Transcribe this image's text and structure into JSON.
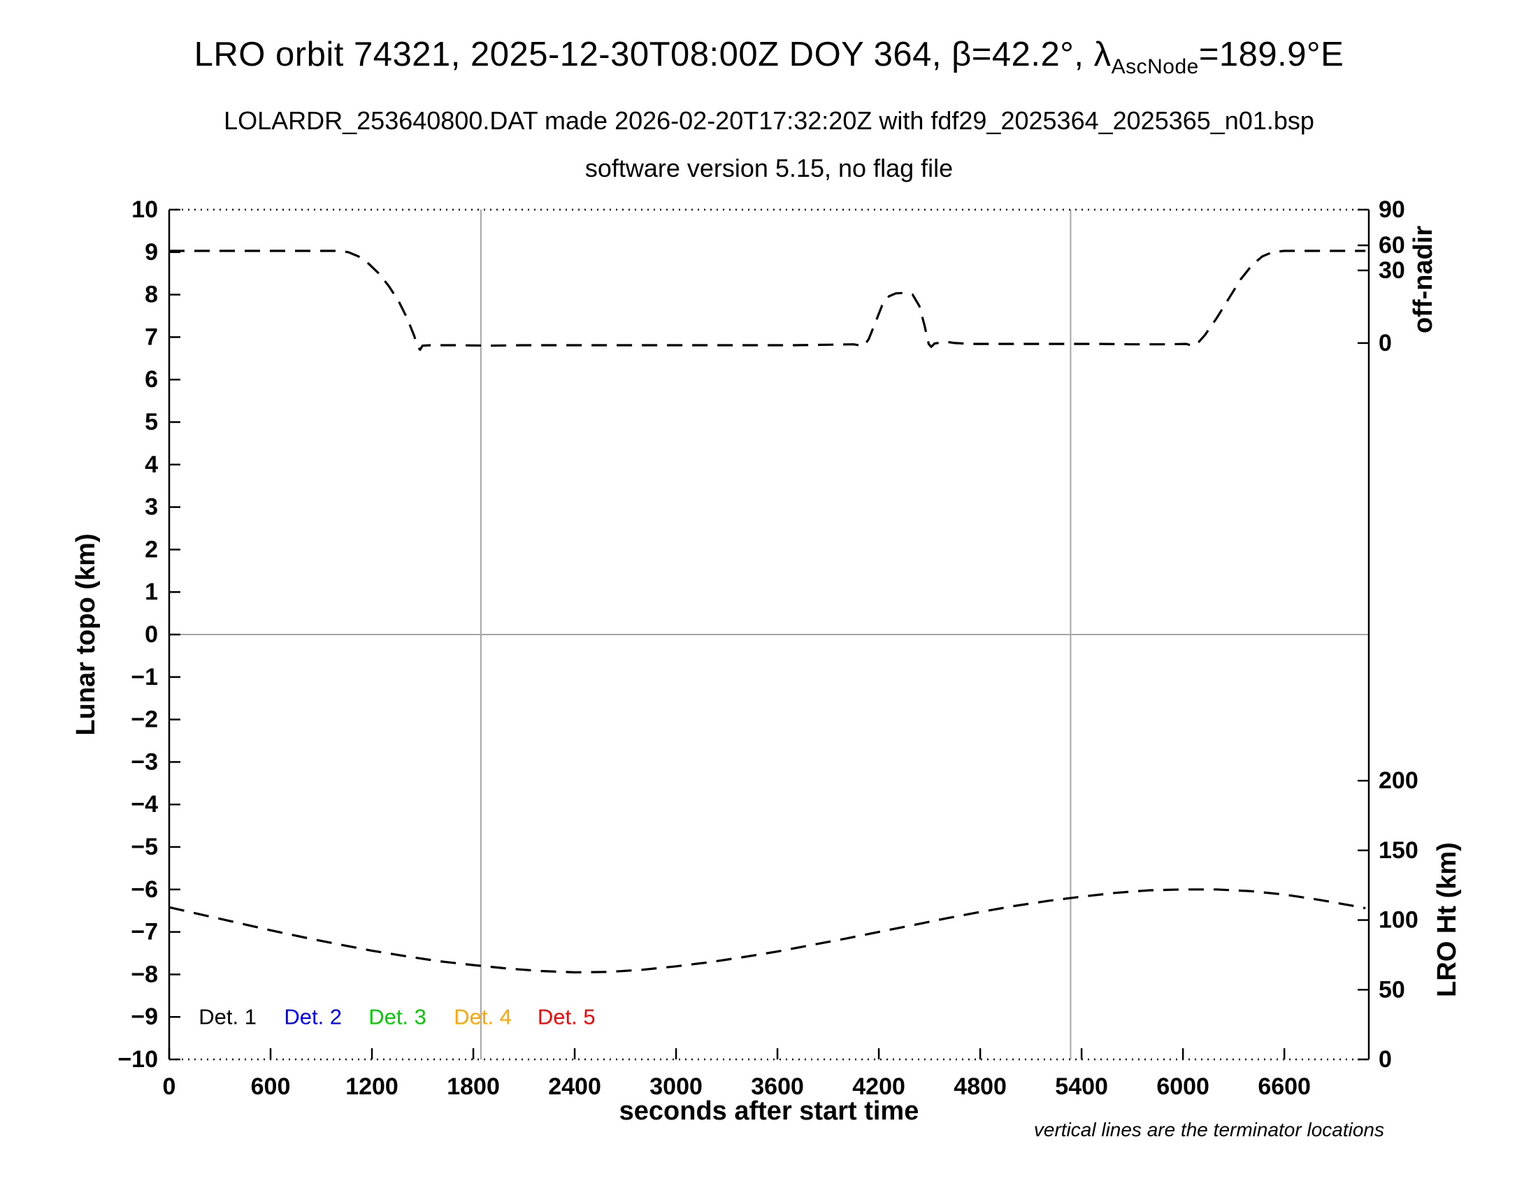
{
  "page": {
    "title_pre": "LRO orbit 74321, 2025-12-30T08:00Z DOY 364, β=42.2°, λ",
    "title_sub": "AscNode",
    "title_post": "=189.9°E",
    "subtitle1": "LOLARDR_253640800.DAT made 2026-02-20T17:32:20Z with fdf29_2025364_2025365_n01.bsp",
    "subtitle2": "software version 5.15, no flag file"
  },
  "chart_data": {
    "type": "line",
    "title": "LRO orbit 74321, 2025-12-30T08:00Z DOY 364, β=42.2°, λAscNode=189.9°E",
    "x_axis": {
      "label": "seconds after start time",
      "range": [
        0,
        7100
      ],
      "ticks": [
        0,
        600,
        1200,
        1800,
        2400,
        3000,
        3600,
        4200,
        4800,
        5400,
        6000,
        6600
      ]
    },
    "y_axis_left": {
      "label": "Lunar topo (km)",
      "range": [
        -10,
        10
      ],
      "ticks": [
        -10,
        -9,
        -8,
        -7,
        -6,
        -5,
        -4,
        -3,
        -2,
        -1,
        0,
        1,
        2,
        3,
        4,
        5,
        6,
        7,
        8,
        9,
        10
      ]
    },
    "y_axis_right_top": {
      "label": "off-nadir",
      "ticks": [
        {
          "label": "90",
          "pos_left_units": 10.0
        },
        {
          "label": "60",
          "pos_left_units": 9.16
        },
        {
          "label": "30",
          "pos_left_units": 8.57
        },
        {
          "label": "0",
          "pos_left_units": 6.86
        }
      ]
    },
    "y_axis_right_bottom": {
      "label": "LRO Ht (km)",
      "ticks": [
        {
          "label": "200",
          "pos_left_units": -3.44
        },
        {
          "label": "150",
          "pos_left_units": -5.08
        },
        {
          "label": "100",
          "pos_left_units": -6.72
        },
        {
          "label": "50",
          "pos_left_units": -8.36
        },
        {
          "label": "0",
          "pos_left_units": -10.0
        }
      ]
    },
    "reference_lines": {
      "color": "#a6a6a6",
      "horizontal_y": 0,
      "terminator_x": [
        1845,
        5335
      ]
    },
    "series": [
      {
        "name": "off-nadir angle curve (upper, values in left-axis units)",
        "color": "#000000",
        "style": "dashed",
        "points": [
          [
            0,
            9.03
          ],
          [
            150,
            9.03
          ],
          [
            300,
            9.03
          ],
          [
            450,
            9.03
          ],
          [
            600,
            9.03
          ],
          [
            750,
            9.03
          ],
          [
            900,
            9.03
          ],
          [
            1000,
            9.03
          ],
          [
            1060,
            9.0
          ],
          [
            1120,
            8.9
          ],
          [
            1180,
            8.73
          ],
          [
            1240,
            8.5
          ],
          [
            1300,
            8.2
          ],
          [
            1360,
            7.83
          ],
          [
            1410,
            7.43
          ],
          [
            1450,
            7.03
          ],
          [
            1470,
            6.78
          ],
          [
            1485,
            6.7
          ],
          [
            1500,
            6.8
          ],
          [
            1550,
            6.81
          ],
          [
            1700,
            6.81
          ],
          [
            1900,
            6.8
          ],
          [
            2100,
            6.81
          ],
          [
            2300,
            6.81
          ],
          [
            2500,
            6.81
          ],
          [
            2700,
            6.81
          ],
          [
            2900,
            6.81
          ],
          [
            3100,
            6.81
          ],
          [
            3300,
            6.81
          ],
          [
            3500,
            6.81
          ],
          [
            3700,
            6.81
          ],
          [
            3900,
            6.82
          ],
          [
            4050,
            6.83
          ],
          [
            4110,
            6.79
          ],
          [
            4140,
            6.95
          ],
          [
            4180,
            7.35
          ],
          [
            4220,
            7.75
          ],
          [
            4260,
            7.96
          ],
          [
            4300,
            8.03
          ],
          [
            4350,
            8.04
          ],
          [
            4400,
            8.0
          ],
          [
            4440,
            7.73
          ],
          [
            4470,
            7.28
          ],
          [
            4495,
            6.84
          ],
          [
            4510,
            6.77
          ],
          [
            4530,
            6.85
          ],
          [
            4600,
            6.89
          ],
          [
            4650,
            6.86
          ],
          [
            4750,
            6.84
          ],
          [
            4900,
            6.84
          ],
          [
            5100,
            6.84
          ],
          [
            5300,
            6.84
          ],
          [
            5500,
            6.84
          ],
          [
            5700,
            6.83
          ],
          [
            5900,
            6.83
          ],
          [
            6020,
            6.84
          ],
          [
            6060,
            6.79
          ],
          [
            6090,
            6.87
          ],
          [
            6130,
            7.05
          ],
          [
            6200,
            7.45
          ],
          [
            6270,
            7.9
          ],
          [
            6340,
            8.35
          ],
          [
            6410,
            8.7
          ],
          [
            6470,
            8.9
          ],
          [
            6530,
            9.0
          ],
          [
            6600,
            9.03
          ],
          [
            6700,
            9.03
          ],
          [
            6850,
            9.03
          ],
          [
            7000,
            9.03
          ],
          [
            7080,
            9.03
          ]
        ]
      },
      {
        "name": "LRO height curve (lower, values in left-axis units)",
        "color": "#000000",
        "style": "dashed",
        "points": [
          [
            0,
            -6.42
          ],
          [
            200,
            -6.6
          ],
          [
            400,
            -6.78
          ],
          [
            600,
            -6.96
          ],
          [
            800,
            -7.13
          ],
          [
            1000,
            -7.29
          ],
          [
            1200,
            -7.44
          ],
          [
            1400,
            -7.57
          ],
          [
            1600,
            -7.69
          ],
          [
            1800,
            -7.78
          ],
          [
            2000,
            -7.86
          ],
          [
            2200,
            -7.92
          ],
          [
            2400,
            -7.95
          ],
          [
            2600,
            -7.94
          ],
          [
            2800,
            -7.89
          ],
          [
            3000,
            -7.81
          ],
          [
            3200,
            -7.71
          ],
          [
            3400,
            -7.59
          ],
          [
            3600,
            -7.46
          ],
          [
            3800,
            -7.31
          ],
          [
            4000,
            -7.16
          ],
          [
            4200,
            -7.0
          ],
          [
            4400,
            -6.84
          ],
          [
            4600,
            -6.68
          ],
          [
            4800,
            -6.53
          ],
          [
            5000,
            -6.39
          ],
          [
            5200,
            -6.27
          ],
          [
            5400,
            -6.17
          ],
          [
            5600,
            -6.08
          ],
          [
            5800,
            -6.02
          ],
          [
            6000,
            -6.0
          ],
          [
            6200,
            -6.0
          ],
          [
            6400,
            -6.04
          ],
          [
            6600,
            -6.12
          ],
          [
            6800,
            -6.24
          ],
          [
            7000,
            -6.38
          ],
          [
            7080,
            -6.44
          ]
        ]
      }
    ],
    "legend": {
      "y_left_units": -9.0,
      "items": [
        {
          "label": "Det. 1",
          "color": "#000000",
          "x_seconds": 175
        },
        {
          "label": "Det. 2",
          "color": "#0000ff",
          "x_seconds": 680
        },
        {
          "label": "Det. 3",
          "color": "#00cc00",
          "x_seconds": 1180
        },
        {
          "label": "Det. 4",
          "color": "#ffa500",
          "x_seconds": 1685
        },
        {
          "label": "Det. 5",
          "color": "#ff0000",
          "x_seconds": 2180
        }
      ]
    },
    "footnote": "vertical lines are the terminator locations"
  }
}
